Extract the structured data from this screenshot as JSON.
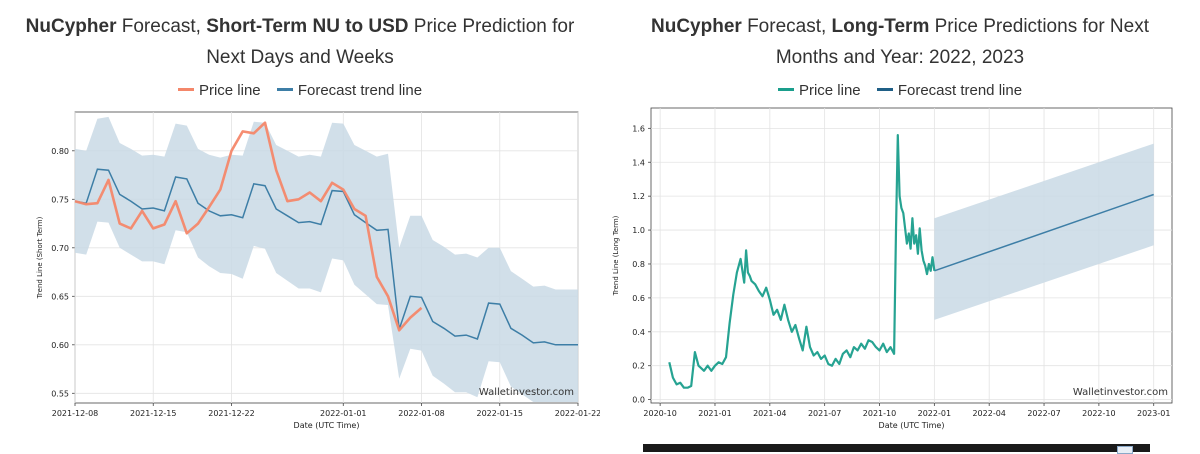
{
  "left_panel": {
    "title_bold1": "NuCypher",
    "title_text1": " Forecast, ",
    "title_bold2": "Short-Term NU to USD",
    "title_text2": " Price Prediction for",
    "title_line2": "Next Days and Weeks",
    "legend": [
      "Price line",
      "Forecast trend line"
    ]
  },
  "right_panel": {
    "title_bold1": "NuCypher",
    "title_text1": " Forecast, ",
    "title_bold2": "Long-Term",
    "title_text2": " Price Predictions for Next",
    "title_line2": "Months and Year: 2022, 2023",
    "legend": [
      "Price line",
      "Forecast trend line"
    ]
  },
  "colors": {
    "price_short": "#f4876a",
    "price_long": "#1a9e8c",
    "forecast": "#3d7ea6",
    "band": "#c9d9e5"
  },
  "chart_data": [
    {
      "type": "line",
      "title": "",
      "xlabel": "Date (UTC Time)",
      "ylabel": "Trend Line (Short Term)",
      "watermark": "Walletinvestor.com",
      "x_start": "2021-12-08",
      "xlim_days": [
        0,
        45
      ],
      "ylim": [
        0.54,
        0.84
      ],
      "xticks": [
        {
          "day": 0,
          "label": "2021-12-08"
        },
        {
          "day": 7,
          "label": "2021-12-15"
        },
        {
          "day": 14,
          "label": "2021-12-22"
        },
        {
          "day": 24,
          "label": "2022-01-01"
        },
        {
          "day": 31,
          "label": "2022-01-08"
        },
        {
          "day": 38,
          "label": "2022-01-15"
        },
        {
          "day": 45,
          "label": "2022-01-22"
        }
      ],
      "yticks": [
        0.55,
        0.6,
        0.65,
        0.7,
        0.75,
        0.8
      ],
      "grid": true,
      "series": [
        {
          "name": "Price line",
          "x": [
            0,
            1,
            2,
            3,
            4,
            5,
            6,
            7,
            8,
            9,
            10,
            11,
            12,
            13,
            14,
            15,
            16,
            17,
            18,
            19,
            20,
            21,
            22,
            23,
            24,
            25,
            26,
            27,
            28,
            29,
            30,
            31
          ],
          "values": [
            0.748,
            0.745,
            0.746,
            0.77,
            0.725,
            0.72,
            0.738,
            0.72,
            0.724,
            0.748,
            0.715,
            0.725,
            0.742,
            0.76,
            0.8,
            0.82,
            0.818,
            0.829,
            0.78,
            0.748,
            0.75,
            0.757,
            0.748,
            0.767,
            0.76,
            0.74,
            0.733,
            0.67,
            0.65,
            0.615,
            0.628,
            0.638
          ]
        },
        {
          "name": "Forecast trend line",
          "x": [
            0,
            1,
            2,
            3,
            4,
            5,
            6,
            7,
            8,
            9,
            10,
            11,
            12,
            13,
            14,
            15,
            16,
            17,
            18,
            19,
            20,
            21,
            22,
            23,
            24,
            25,
            26,
            27,
            28,
            29,
            30,
            31,
            32,
            33,
            34,
            35,
            36,
            37,
            38,
            39,
            40,
            41,
            42,
            43,
            44,
            45
          ],
          "values": [
            0.748,
            0.746,
            0.781,
            0.78,
            0.755,
            0.748,
            0.74,
            0.741,
            0.738,
            0.773,
            0.771,
            0.746,
            0.738,
            0.733,
            0.734,
            0.731,
            0.766,
            0.764,
            0.74,
            0.733,
            0.726,
            0.727,
            0.724,
            0.759,
            0.758,
            0.734,
            0.726,
            0.718,
            0.719,
            0.616,
            0.65,
            0.649,
            0.624,
            0.617,
            0.609,
            0.61,
            0.606,
            0.643,
            0.642,
            0.617,
            0.61,
            0.602,
            0.603,
            0.6,
            0.6,
            0.6
          ],
          "upper": [
            0.802,
            0.8,
            0.833,
            0.835,
            0.808,
            0.802,
            0.795,
            0.796,
            0.794,
            0.828,
            0.826,
            0.802,
            0.796,
            0.793,
            0.796,
            0.795,
            0.83,
            0.829,
            0.806,
            0.8,
            0.794,
            0.796,
            0.794,
            0.829,
            0.828,
            0.806,
            0.8,
            0.794,
            0.797,
            0.7,
            0.733,
            0.733,
            0.708,
            0.701,
            0.693,
            0.694,
            0.69,
            0.7,
            0.7,
            0.676,
            0.668,
            0.66,
            0.661,
            0.657,
            0.657,
            0.657
          ],
          "lower": [
            0.695,
            0.693,
            0.727,
            0.726,
            0.7,
            0.693,
            0.686,
            0.686,
            0.683,
            0.718,
            0.716,
            0.69,
            0.681,
            0.674,
            0.673,
            0.668,
            0.702,
            0.699,
            0.674,
            0.666,
            0.658,
            0.658,
            0.654,
            0.689,
            0.687,
            0.662,
            0.652,
            0.642,
            0.641,
            0.565,
            0.596,
            0.594,
            0.568,
            0.56,
            0.551,
            0.551,
            0.546,
            0.583,
            0.582,
            0.557,
            0.549,
            0.541,
            0.541,
            0.541,
            0.541,
            0.541
          ]
        }
      ]
    },
    {
      "type": "line",
      "title": "",
      "xlabel": "Date (UTC Time)",
      "ylabel": "Trend Line (Long Term)",
      "watermark": "Walletinvestor.com",
      "x_start": "2020-10-01",
      "xlim_months": [
        -0.5,
        28
      ],
      "ylim": [
        -0.02,
        1.72
      ],
      "xticks": [
        {
          "m": 0,
          "label": "2020-10"
        },
        {
          "m": 3,
          "label": "2021-01"
        },
        {
          "m": 6,
          "label": "2021-04"
        },
        {
          "m": 9,
          "label": "2021-07"
        },
        {
          "m": 12,
          "label": "2021-10"
        },
        {
          "m": 15,
          "label": "2022-01"
        },
        {
          "m": 18,
          "label": "2022-04"
        },
        {
          "m": 21,
          "label": "2022-07"
        },
        {
          "m": 24,
          "label": "2022-10"
        },
        {
          "m": 27,
          "label": "2023-01"
        }
      ],
      "yticks": [
        0.0,
        0.2,
        0.4,
        0.6,
        0.8,
        1.0,
        1.2,
        1.4,
        1.6
      ],
      "grid": true,
      "series": [
        {
          "name": "Price line",
          "x": [
            0.5,
            0.7,
            0.9,
            1.1,
            1.3,
            1.5,
            1.7,
            1.9,
            2.1,
            2.2,
            2.4,
            2.6,
            2.8,
            3.0,
            3.2,
            3.4,
            3.6,
            3.8,
            4.0,
            4.2,
            4.4,
            4.6,
            4.7,
            4.8,
            4.9,
            5.0,
            5.2,
            5.4,
            5.6,
            5.8,
            6.0,
            6.2,
            6.4,
            6.6,
            6.8,
            7.0,
            7.2,
            7.4,
            7.6,
            7.8,
            8.0,
            8.2,
            8.4,
            8.6,
            8.8,
            9.0,
            9.2,
            9.4,
            9.6,
            9.8,
            10.0,
            10.2,
            10.4,
            10.6,
            10.8,
            11.0,
            11.2,
            11.4,
            11.6,
            11.8,
            12.0,
            12.2,
            12.4,
            12.6,
            12.8,
            12.9,
            13.0,
            13.1,
            13.2,
            13.3,
            13.4,
            13.5,
            13.6,
            13.7,
            13.8,
            13.9,
            14.0,
            14.1,
            14.2,
            14.3,
            14.4,
            14.5,
            14.6,
            14.7,
            14.8,
            14.9,
            15.0
          ],
          "values": [
            0.22,
            0.13,
            0.09,
            0.1,
            0.07,
            0.07,
            0.08,
            0.28,
            0.2,
            0.19,
            0.17,
            0.2,
            0.17,
            0.2,
            0.22,
            0.21,
            0.25,
            0.45,
            0.62,
            0.75,
            0.83,
            0.69,
            0.88,
            0.75,
            0.73,
            0.7,
            0.68,
            0.64,
            0.61,
            0.66,
            0.59,
            0.5,
            0.53,
            0.47,
            0.56,
            0.47,
            0.4,
            0.44,
            0.36,
            0.29,
            0.43,
            0.31,
            0.26,
            0.28,
            0.24,
            0.26,
            0.21,
            0.2,
            0.24,
            0.21,
            0.27,
            0.29,
            0.25,
            0.31,
            0.29,
            0.33,
            0.3,
            0.35,
            0.34,
            0.31,
            0.29,
            0.33,
            0.28,
            0.31,
            0.27,
            1.0,
            1.56,
            1.2,
            1.13,
            1.1,
            1.01,
            0.92,
            0.98,
            0.89,
            1.07,
            0.92,
            0.97,
            0.86,
            1.01,
            0.88,
            0.82,
            0.79,
            0.74,
            0.8,
            0.76,
            0.84,
            0.76
          ]
        },
        {
          "name": "Forecast trend line",
          "x": [
            15.0,
            27.0
          ],
          "values": [
            0.76,
            1.21
          ],
          "upper": [
            1.07,
            1.51
          ],
          "lower": [
            0.47,
            0.91
          ]
        }
      ]
    }
  ]
}
